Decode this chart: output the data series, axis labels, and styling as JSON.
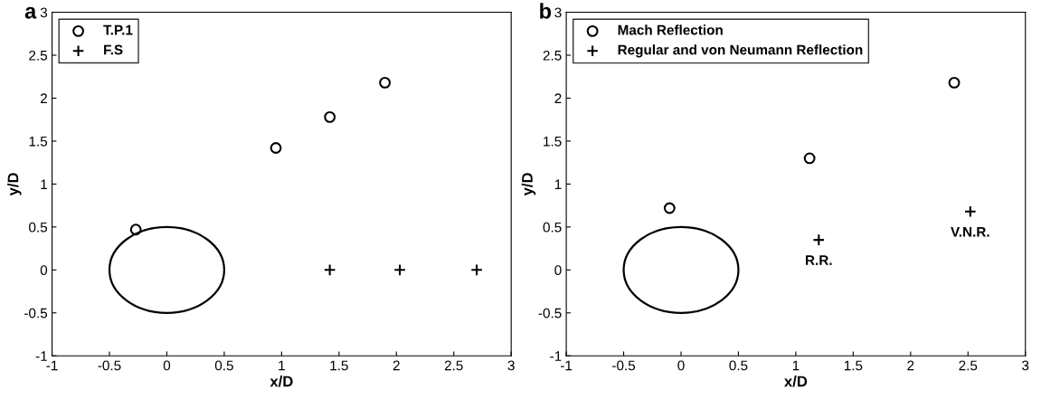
{
  "chart_data": [
    {
      "type": "scatter",
      "title": "a",
      "xlabel": "x/D",
      "ylabel": "y/D",
      "xlim": [
        -1,
        3
      ],
      "ylim": [
        -1,
        3
      ],
      "xticks": [
        -1,
        -0.5,
        0,
        0.5,
        1,
        1.5,
        2,
        2.5,
        3
      ],
      "yticks": [
        -1,
        -0.5,
        0,
        0.5,
        1,
        1.5,
        2,
        2.5,
        3
      ],
      "grid": false,
      "legend": "top left",
      "series": [
        {
          "name": "T.P.1",
          "color": "#000000",
          "marker": "circle",
          "x": [
            -0.27,
            0.95,
            1.42,
            1.9
          ],
          "values": [
            0.47,
            1.42,
            1.78,
            2.18
          ]
        },
        {
          "name": "F.S",
          "color": "#000000",
          "marker": "cross",
          "x": [
            1.42,
            2.03,
            2.7
          ],
          "values": [
            0,
            0,
            0
          ]
        }
      ]
    },
    {
      "type": "scatter",
      "title": "b",
      "xlabel": "x/D",
      "ylabel": "y/D",
      "xlim": [
        -1,
        3
      ],
      "ylim": [
        -1,
        3
      ],
      "xticks": [
        -1,
        -0.5,
        0,
        0.5,
        1,
        1.5,
        2,
        2.5,
        3
      ],
      "yticks": [
        -1,
        -0.5,
        0,
        0.5,
        1,
        1.5,
        2,
        2.5,
        3
      ],
      "grid": false,
      "legend": "top left",
      "series": [
        {
          "name": "Mach Reflection",
          "color": "#000000",
          "marker": "circle",
          "x": [
            -0.1,
            1.12,
            2.38
          ],
          "values": [
            0.72,
            1.3,
            2.18
          ]
        },
        {
          "name": "Regular and von Neumann Reflection",
          "color": "#000000",
          "marker": "cross",
          "x": [
            1.2,
            2.52
          ],
          "values": [
            0.35,
            0.68
          ]
        }
      ],
      "annotations": [
        {
          "text": "R.R.",
          "x": 1.2,
          "y": 0.35
        },
        {
          "text": "V.N.R.",
          "x": 2.52,
          "y": 0.68
        }
      ]
    }
  ]
}
